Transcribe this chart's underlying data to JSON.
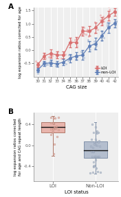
{
  "panel_a": {
    "cag_sizes": [
      30,
      31,
      32,
      33,
      34,
      35,
      36,
      37,
      38,
      39,
      40,
      41,
      42
    ],
    "loi_means": [
      -0.55,
      -0.22,
      -0.12,
      -0.18,
      -0.18,
      0.3,
      0.3,
      0.72,
      0.72,
      0.85,
      1.1,
      1.3,
      1.45
    ],
    "loi_errors": [
      0.1,
      0.12,
      0.15,
      0.12,
      0.14,
      0.18,
      0.2,
      0.16,
      0.18,
      0.2,
      0.16,
      0.18,
      0.14
    ],
    "nonloi_means": [
      -0.75,
      -0.5,
      -0.48,
      -0.52,
      -0.45,
      -0.3,
      -0.22,
      -0.18,
      0.15,
      0.25,
      0.55,
      0.85,
      1.02
    ],
    "nonloi_errors": [
      0.08,
      0.1,
      0.12,
      0.1,
      0.12,
      0.15,
      0.14,
      0.18,
      0.2,
      0.22,
      0.18,
      0.2,
      0.16
    ],
    "loi_color": "#d97070",
    "nonloi_color": "#6080b8",
    "loi_scatter_color": "#e8a0a0",
    "nonloi_scatter_color": "#9ab0d0",
    "ylabel": "log expansion ratios corrected for age",
    "xlabel": "CAG size",
    "ylim": [
      -1.0,
      1.6
    ],
    "yticks": [
      -0.5,
      0.0,
      0.5,
      1.0,
      1.5
    ],
    "legend_loi": "LOI",
    "legend_nonloi": "non-LOI"
  },
  "panel_b": {
    "loi_median": 0.35,
    "loi_q1": 0.24,
    "loi_q3": 0.43,
    "loi_whisker_low": -0.2,
    "loi_whisker_high": 0.55,
    "nonloi_median": -0.09,
    "nonloi_q1": -0.24,
    "nonloi_q3": 0.07,
    "nonloi_whisker_low": -0.54,
    "nonloi_whisker_high": 0.43,
    "loi_color": "#e8b4ac",
    "nonloi_color": "#b4bece",
    "loi_edge": "#b07868",
    "nonloi_edge": "#8090a8",
    "ylabel": "log expansion ratios corrected\nfor age and CAG repeat length",
    "xlabel": "LOI status",
    "xtick_labels": [
      "LOI",
      "Non-LOI"
    ],
    "ylim": [
      -0.68,
      0.62
    ],
    "yticks": [
      -0.4,
      0.0,
      0.4
    ]
  },
  "bg_color": "#efefef",
  "figure_bg": "#ffffff"
}
